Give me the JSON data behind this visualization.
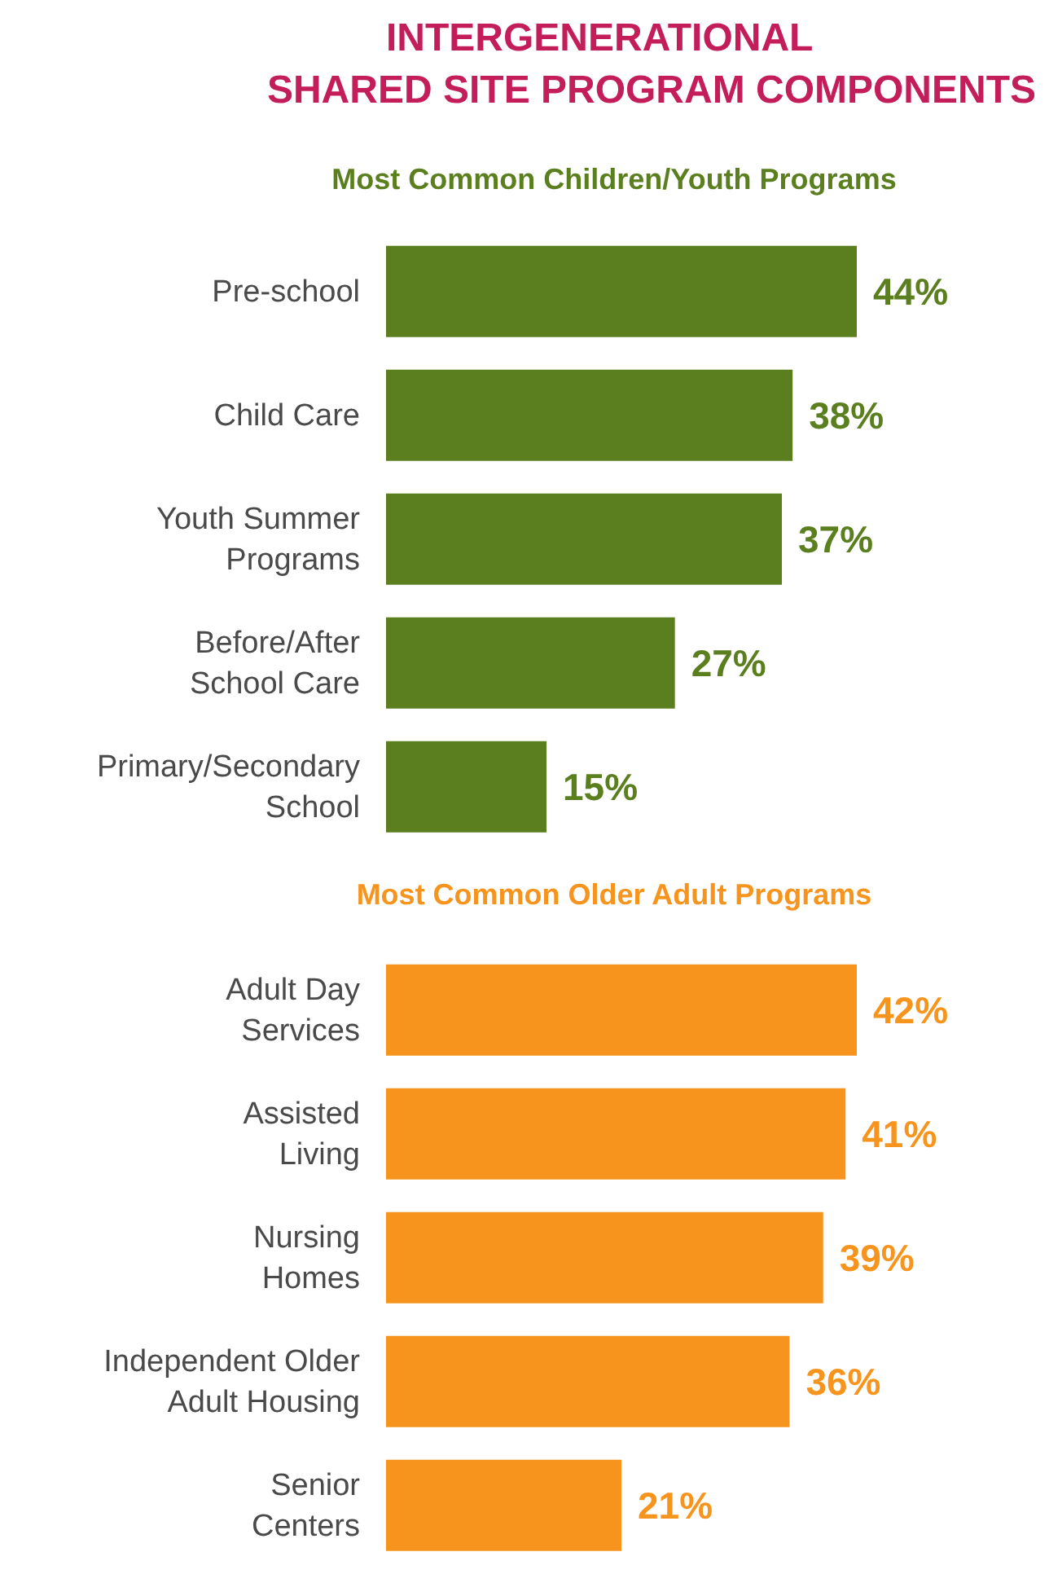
{
  "chart_data": [
    {
      "type": "bar",
      "orientation": "horizontal",
      "title": "INTERGENERATIONAL\nSHARED SITE PROGRAM COMPONENTS",
      "subtitle": "Most Common Children/Youth Programs",
      "categories": [
        "Pre-school",
        "Child Care",
        "Youth Summer Programs",
        "Before/After School Care",
        "Primary/Secondary School"
      ],
      "series": [
        {
          "color": "#5b7f1f",
          "values": [
            44,
            38,
            37,
            27,
            15
          ],
          "value_labels": [
            "44%",
            "38%",
            "37%",
            "27%",
            "15%"
          ]
        }
      ],
      "tick_labels": "y"
    },
    {
      "type": "bar",
      "orientation": "horizontal",
      "title": "Most Common Older Adult Programs",
      "categories": [
        "Adult Day Services",
        "Assisted Living",
        "Nursing Homes",
        "Independent Older Adult Housing",
        "Senior Centers"
      ],
      "series": [
        {
          "color": "#f7941e",
          "values": [
            42,
            41,
            39,
            36,
            21
          ],
          "value_labels": [
            "42%",
            "41%",
            "39%",
            "36%",
            "21%"
          ]
        }
      ],
      "tick_labels": "y"
    }
  ]
}
